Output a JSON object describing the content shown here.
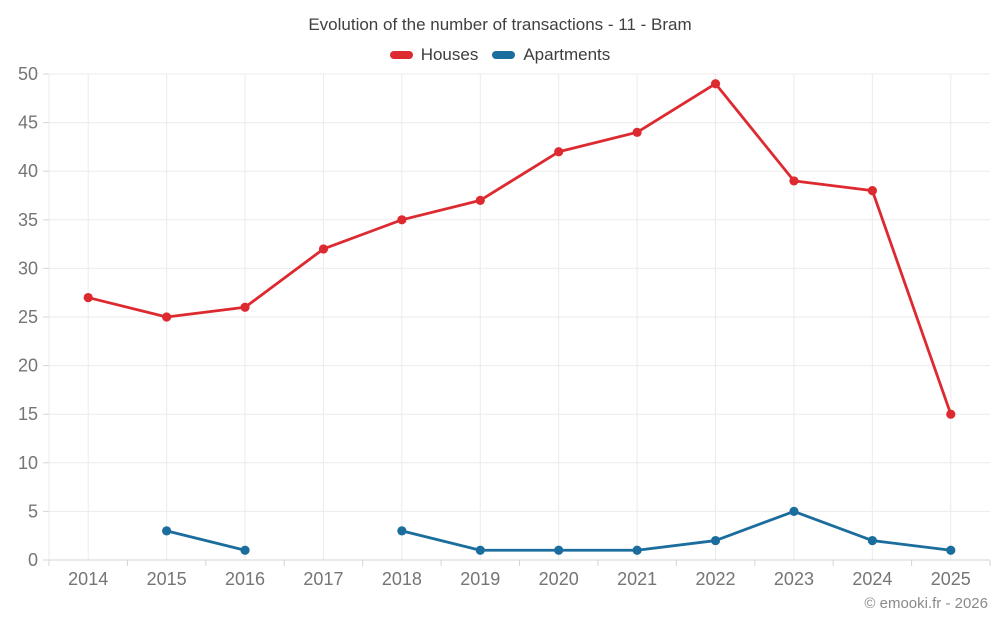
{
  "page": {
    "watermark": "© emooki.fr - 2026"
  },
  "chart_data": {
    "type": "line",
    "title": "Evolution of the number of transactions - 11 - Bram",
    "categories": [
      "2014",
      "2015",
      "2016",
      "2017",
      "2018",
      "2019",
      "2020",
      "2021",
      "2022",
      "2023",
      "2024",
      "2025"
    ],
    "series": [
      {
        "name": "Houses",
        "color": "#dd2a30",
        "values": [
          27,
          25,
          26,
          32,
          35,
          37,
          42,
          44,
          49,
          39,
          38,
          15
        ]
      },
      {
        "name": "Apartments",
        "color": "#1b6d9d",
        "values": [
          null,
          3,
          1,
          null,
          3,
          1,
          1,
          1,
          2,
          5,
          2,
          1
        ]
      }
    ],
    "xlabel": "",
    "ylabel": "",
    "ylim": [
      0,
      50
    ],
    "ytick_step": 5,
    "grid": true,
    "legend_position": "top"
  },
  "colors": {
    "background": "#ffffff",
    "grid": "#ebebeb",
    "axis": "#d5d5d5",
    "axis_label": "#757575",
    "title_text": "#404040",
    "legend_text": "#3d3d3d",
    "watermark_text": "#8a8a8a"
  }
}
